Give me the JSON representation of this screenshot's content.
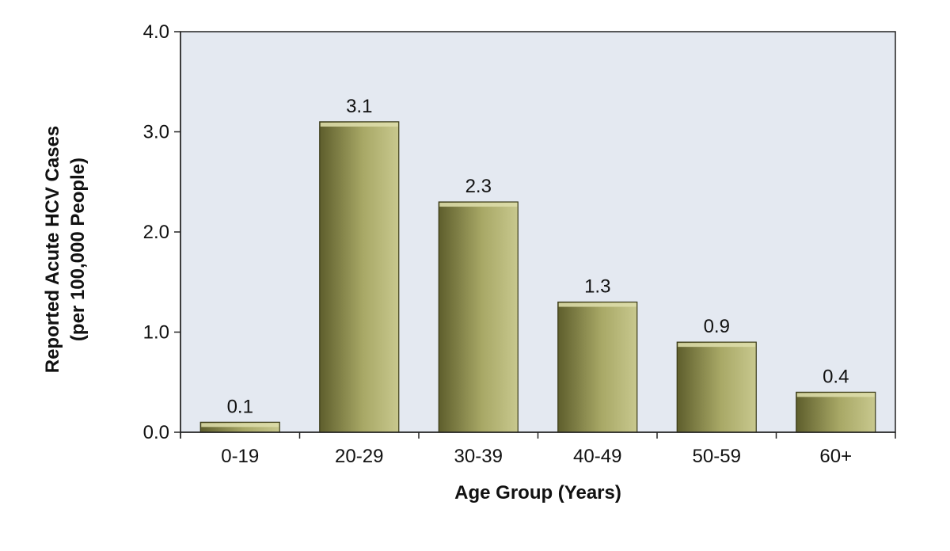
{
  "chart_data": {
    "type": "bar",
    "categories": [
      "0-19",
      "20-29",
      "30-39",
      "40-49",
      "50-59",
      "60+"
    ],
    "values": [
      0.1,
      3.1,
      2.3,
      1.3,
      0.9,
      0.4
    ],
    "data_labels": [
      "0.1",
      "3.1",
      "2.3",
      "1.3",
      "0.9",
      "0.4"
    ],
    "xlabel": "Age Group (Years)",
    "ylabel": "Reported Acute HCV Cases",
    "ylabel_line2": "(per 100,000 People)",
    "ylim": [
      0,
      4
    ],
    "yticks": [
      0,
      1,
      2,
      3,
      4
    ],
    "ytick_labels": [
      "0.0",
      "1.0",
      "2.0",
      "3.0",
      "4.0"
    ],
    "grid": false,
    "legend": "none",
    "colors": {
      "plot_background": "#e4e9f1",
      "bar_light": "#c8c88e",
      "bar_mid": "#a8a866",
      "bar_dark": "#5e5e2c",
      "bar_top": "#dcdca8",
      "axis": "#222222"
    }
  }
}
